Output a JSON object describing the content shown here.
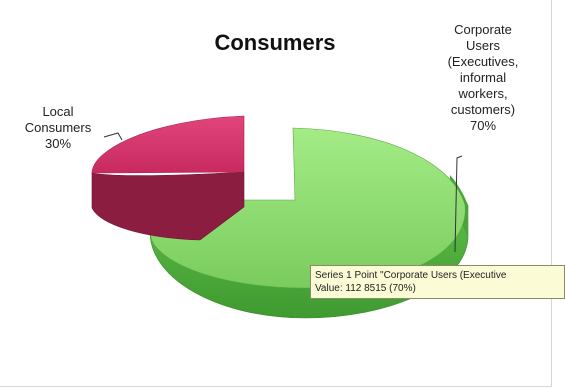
{
  "chart_data": {
    "type": "pie",
    "title": "Consumers",
    "slices": [
      {
        "label_lines": [
          "Local",
          "Consumers",
          "30%"
        ],
        "value": 30,
        "color": "#d6336c",
        "side_color": "#8a1d40"
      },
      {
        "label_lines": [
          "Corporate",
          "Users",
          "(Executives,",
          "informal",
          "workers,",
          "customers)",
          "70%"
        ],
        "value": 70,
        "color": "#86d86a",
        "side_color": "#4aa33a"
      }
    ]
  },
  "tooltip": {
    "line1": "Series 1 Point \"Corporate Users (Executive",
    "line2": "Value: 112 8515 (70%)"
  }
}
